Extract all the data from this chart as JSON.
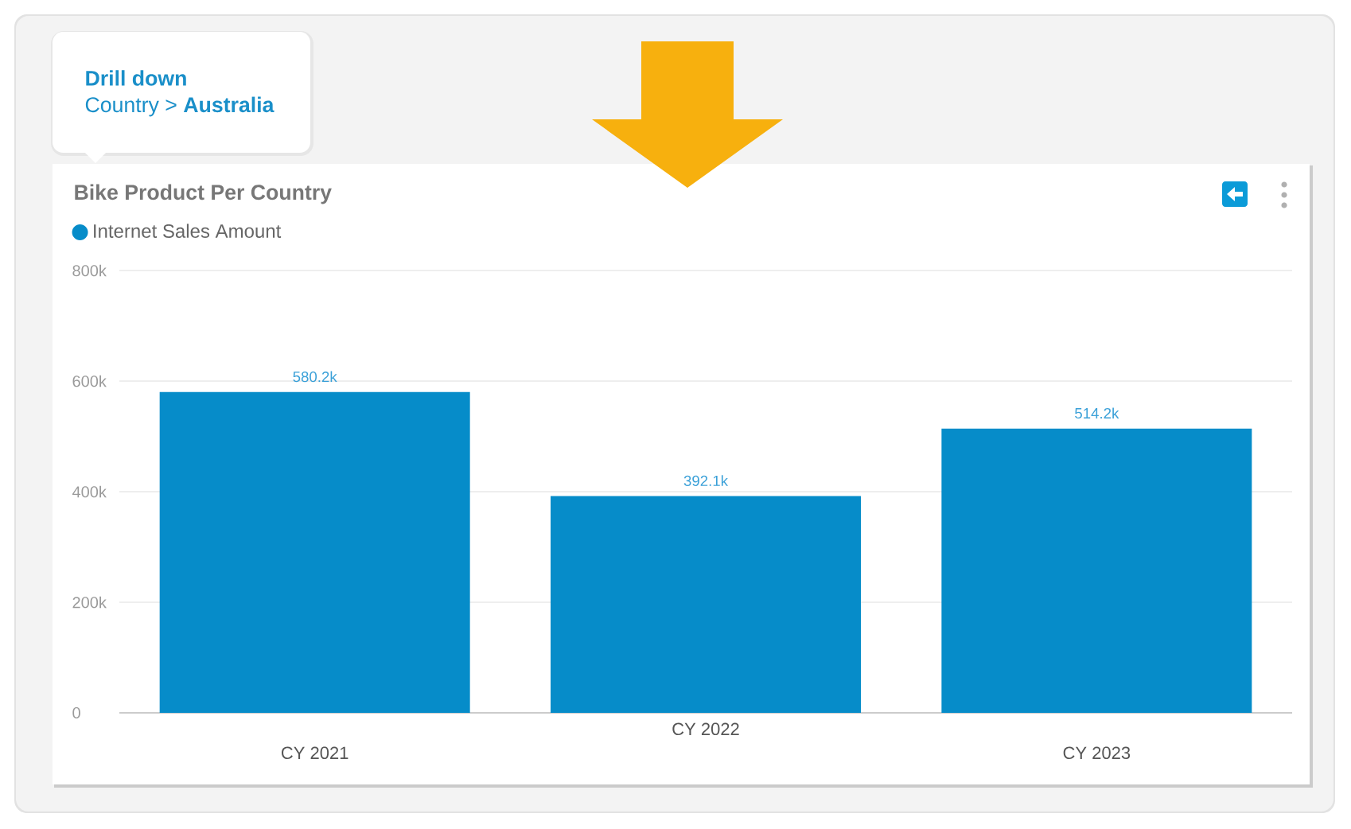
{
  "chart_data": {
    "type": "bar",
    "title": "Bike Product Per Country",
    "categories": [
      "CY 2021",
      "CY 2022",
      "CY 2023"
    ],
    "series": [
      {
        "name": "Internet Sales Amount",
        "color": "#068cc9",
        "values": [
          580200,
          392100,
          514200
        ],
        "value_labels": [
          "580.2k",
          "392.1k",
          "514.2k"
        ]
      }
    ],
    "ylim": [
      0,
      800000
    ],
    "yticks": [
      0,
      {
        "value": 200000,
        "label": "200k"
      },
      {
        "value": 400000,
        "label": "400k"
      },
      {
        "value": 600000,
        "label": "600k"
      },
      {
        "value": 800000,
        "label": "800k"
      }
    ],
    "grid": "y",
    "legend": "top left",
    "annotations": [
      "Drill down",
      "Country > **Australia**"
    ]
  }
}
